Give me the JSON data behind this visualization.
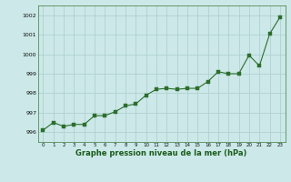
{
  "x": [
    0,
    1,
    2,
    3,
    4,
    5,
    6,
    7,
    8,
    9,
    10,
    11,
    12,
    13,
    14,
    15,
    16,
    17,
    18,
    19,
    20,
    21,
    22,
    23
  ],
  "y": [
    996.1,
    996.5,
    996.3,
    996.4,
    996.4,
    996.85,
    996.85,
    997.05,
    997.35,
    997.45,
    997.9,
    998.2,
    998.25,
    998.2,
    998.25,
    998.25,
    998.6,
    999.1,
    999.0,
    999.0,
    999.95,
    999.4,
    1001.05,
    1001.9
  ],
  "line_color": "#2d6e2d",
  "marker_color": "#2d6e2d",
  "bg_color": "#cce8e8",
  "grid_color": "#aacece",
  "xlabel": "Graphe pression niveau de la mer (hPa)",
  "xlabel_color": "#1a5c1a",
  "ylim_min": 995.5,
  "ylim_max": 1002.5,
  "yticks": [
    996,
    997,
    998,
    999,
    1000,
    1001,
    1002
  ],
  "xticks": [
    0,
    1,
    2,
    3,
    4,
    5,
    6,
    7,
    8,
    9,
    10,
    11,
    12,
    13,
    14,
    15,
    16,
    17,
    18,
    19,
    20,
    21,
    22,
    23
  ],
  "line_width": 0.8,
  "marker_size": 2.2
}
